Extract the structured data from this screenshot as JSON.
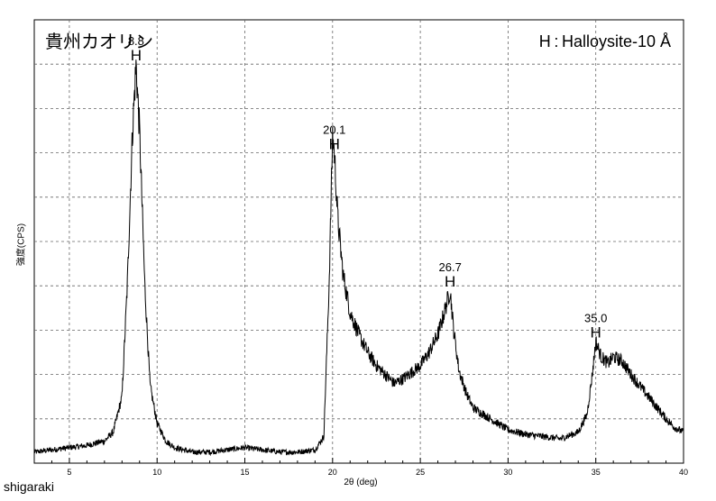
{
  "chart_data": {
    "type": "line",
    "title": "貴州カオリン",
    "legend": "H : Halloysite-10 Å",
    "xlabel": "2θ (deg)",
    "ylabel": "強度(CPS)",
    "xlim": [
      3,
      40
    ],
    "grid": true,
    "x_ticks": [
      5,
      10,
      15,
      20,
      25,
      30,
      35,
      40
    ],
    "x_tick_labels": [
      "5",
      "10",
      "15",
      "20",
      "25",
      "30",
      "35",
      "40"
    ],
    "peaks": [
      {
        "x": 8.8,
        "label": "8.8",
        "marker": "H"
      },
      {
        "x": 20.1,
        "label": "20.1",
        "marker": "H"
      },
      {
        "x": 26.7,
        "label": "26.7",
        "marker": "H"
      },
      {
        "x": 35.0,
        "label": "35.0",
        "marker": "H"
      }
    ],
    "series": [
      {
        "x": [
          3,
          4,
          5,
          6,
          7,
          7.5,
          8,
          8.3,
          8.6,
          8.8,
          9.0,
          9.3,
          9.6,
          10,
          10.5,
          11,
          12,
          13,
          14,
          15,
          16,
          17,
          18,
          19,
          19.5,
          19.8,
          20.0,
          20.1,
          20.3,
          20.6,
          21,
          21.5,
          22,
          22.5,
          23,
          23.5,
          24,
          24.5,
          25,
          25.5,
          26,
          26.3,
          26.5,
          26.7,
          26.9,
          27.2,
          27.6,
          28,
          29,
          30,
          31,
          32,
          33,
          34,
          34.5,
          34.8,
          35.0,
          35.3,
          35.7,
          36,
          36.5,
          37,
          37.5,
          38,
          38.5,
          39,
          39.5,
          40
        ],
        "y": [
          5,
          6,
          7,
          8,
          10,
          14,
          30,
          80,
          150,
          180,
          150,
          80,
          35,
          18,
          10,
          7,
          5,
          5,
          6,
          7,
          6,
          5,
          5,
          6,
          12,
          80,
          148,
          140,
          110,
          85,
          68,
          58,
          50,
          44,
          40,
          36,
          38,
          41,
          44,
          50,
          58,
          66,
          72,
          78,
          60,
          42,
          32,
          25,
          20,
          15,
          13,
          12,
          11,
          14,
          22,
          40,
          55,
          48,
          45,
          48,
          46,
          40,
          35,
          30,
          25,
          20,
          16,
          14
        ]
      }
    ]
  },
  "footer": "shigaraki"
}
